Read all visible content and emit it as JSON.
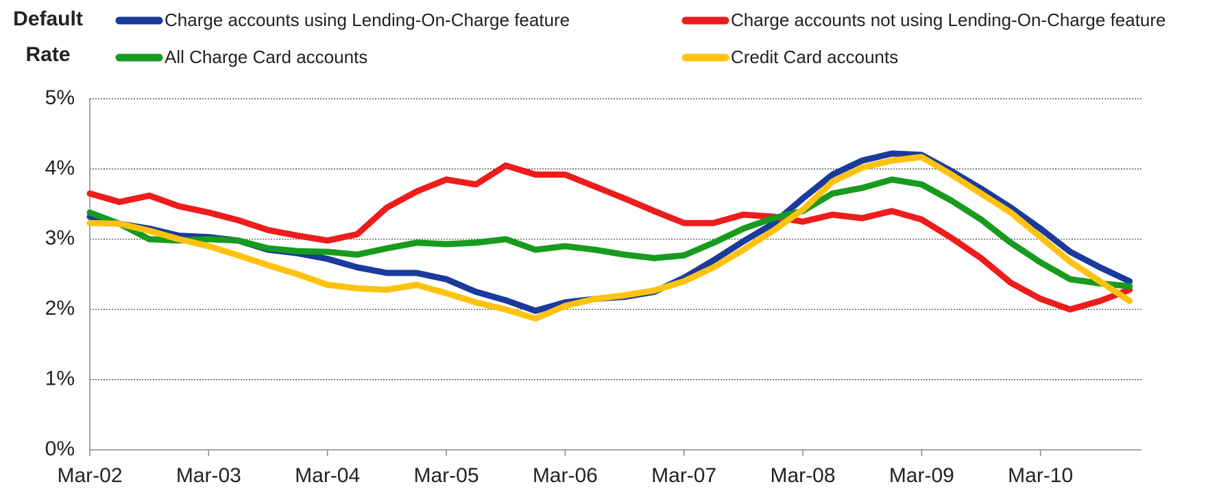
{
  "chart_data": {
    "type": "line",
    "ylabel": "Default Rate",
    "categories": [
      "Mar-02",
      null,
      null,
      null,
      "Mar-03",
      null,
      null,
      null,
      "Mar-04",
      null,
      null,
      null,
      "Mar-05",
      null,
      null,
      null,
      "Mar-06",
      null,
      null,
      null,
      "Mar-07",
      null,
      null,
      null,
      "Mar-08",
      null,
      null,
      null,
      "Mar-09",
      null,
      null,
      null,
      "Mar-10",
      null,
      null,
      null
    ],
    "ylim": [
      0,
      5
    ],
    "yticks": [
      {
        "value": 0,
        "label": "0%"
      },
      {
        "value": 1,
        "label": "1%"
      },
      {
        "value": 2,
        "label": "2%"
      },
      {
        "value": 3,
        "label": "3%"
      },
      {
        "value": 4,
        "label": "4%"
      },
      {
        "value": 5,
        "label": "5%"
      }
    ],
    "grid": true,
    "legend": "top",
    "series": [
      {
        "name": "Charge accounts using Lending-On-Charge feature",
        "color": "#1a3a9c",
        "values": [
          3.32,
          3.22,
          3.15,
          3.05,
          3.03,
          2.98,
          2.85,
          2.8,
          2.72,
          2.6,
          2.52,
          2.52,
          2.43,
          2.25,
          2.13,
          1.98,
          2.1,
          2.15,
          2.18,
          2.25,
          2.45,
          2.7,
          2.97,
          3.22,
          3.58,
          3.92,
          4.12,
          4.22,
          4.2,
          3.97,
          3.72,
          3.45,
          3.15,
          2.82,
          2.6,
          2.4
        ]
      },
      {
        "name": "Charge accounts not using Lending-On-Charge feature",
        "color": "#ee1c1c",
        "values": [
          3.65,
          3.53,
          3.62,
          3.47,
          3.38,
          3.27,
          3.13,
          3.05,
          2.98,
          3.07,
          3.45,
          3.68,
          3.85,
          3.78,
          4.05,
          3.92,
          3.92,
          3.75,
          3.58,
          3.4,
          3.23,
          3.23,
          3.35,
          3.32,
          3.25,
          3.35,
          3.3,
          3.4,
          3.28,
          3.02,
          2.73,
          2.38,
          2.15,
          2.0,
          2.12,
          2.28
        ]
      },
      {
        "name": "All Charge Card accounts",
        "color": "#179b1e",
        "values": [
          3.38,
          3.22,
          3.0,
          2.98,
          3.0,
          2.98,
          2.87,
          2.83,
          2.82,
          2.78,
          2.87,
          2.95,
          2.93,
          2.95,
          3.0,
          2.85,
          2.9,
          2.85,
          2.78,
          2.73,
          2.77,
          2.95,
          3.15,
          3.3,
          3.4,
          3.65,
          3.73,
          3.85,
          3.78,
          3.55,
          3.28,
          2.95,
          2.67,
          2.43,
          2.37,
          2.33
        ]
      },
      {
        "name": "Credit Card accounts",
        "color": "#ffc20e",
        "values": [
          3.23,
          3.22,
          3.12,
          3.0,
          2.9,
          2.77,
          2.63,
          2.5,
          2.35,
          2.3,
          2.28,
          2.35,
          2.23,
          2.1,
          2.0,
          1.87,
          2.05,
          2.15,
          2.2,
          2.27,
          2.4,
          2.6,
          2.85,
          3.12,
          3.42,
          3.82,
          4.02,
          4.12,
          4.17,
          3.92,
          3.65,
          3.38,
          3.03,
          2.68,
          2.4,
          2.12
        ]
      }
    ]
  }
}
